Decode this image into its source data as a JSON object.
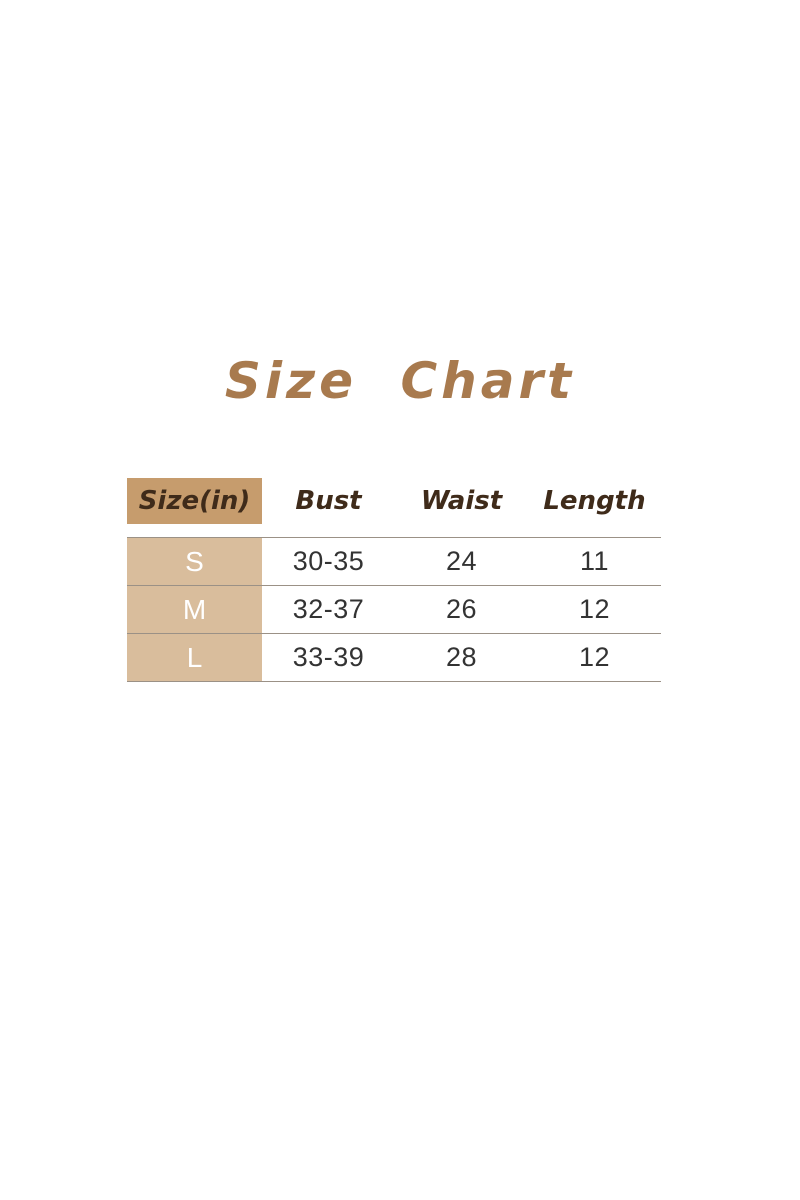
{
  "page": {
    "title": "Size Chart"
  },
  "chart_data": {
    "type": "table",
    "title": "Size Chart",
    "columns": [
      "Size(in)",
      "Bust",
      "Waist",
      "Length"
    ],
    "rows": [
      [
        "S",
        "30-35",
        "24",
        "11"
      ],
      [
        "M",
        "32-37",
        "26",
        "12"
      ],
      [
        "L",
        "33-39",
        "28",
        "12"
      ]
    ]
  },
  "colors": {
    "title_text": "#a87a4e",
    "header_bg": "#c69c6d",
    "header_text": "#3f2b1a",
    "row_label_bg": "#d9bd9c",
    "row_label_text": "#ffffff",
    "data_text": "#333333",
    "divider": "#9b9186"
  }
}
